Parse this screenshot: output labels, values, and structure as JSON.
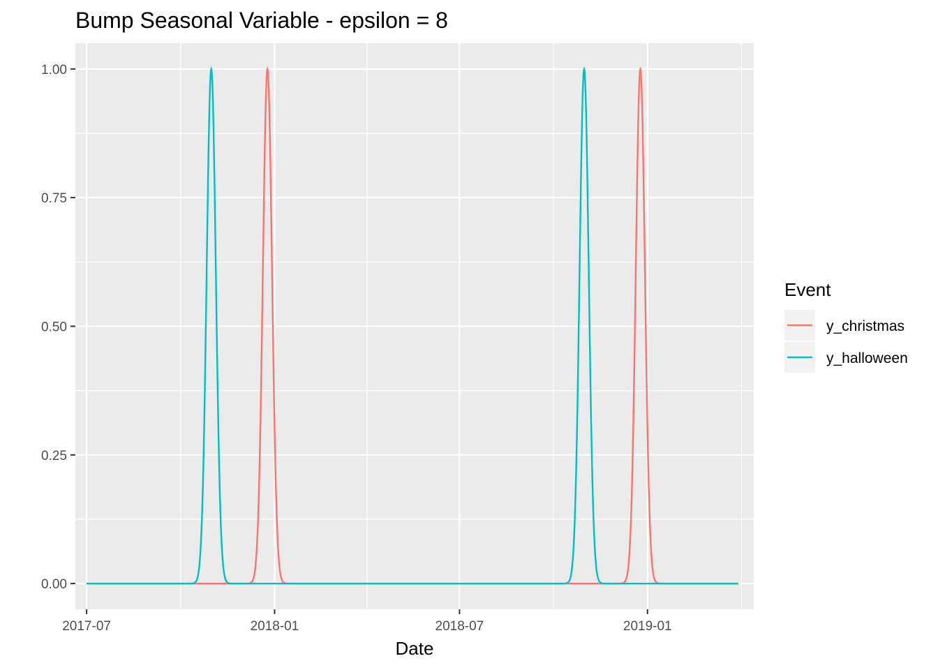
{
  "chart_data": {
    "type": "line",
    "title": "Bump Seasonal Variable - epsilon = 8",
    "xlabel": "Date",
    "ylabel": "",
    "x_axis_type": "date",
    "xlim": [
      "2017-06-20",
      "2019-04-15"
    ],
    "ylim": [
      -0.05,
      1.05
    ],
    "x_range": [
      "2017-07-01",
      "2019-03-31"
    ],
    "x_ticks": [
      "2017-07",
      "2018-01",
      "2018-07",
      "2019-01"
    ],
    "y_ticks": [
      "0.00",
      "0.25",
      "0.50",
      "0.75",
      "1.00"
    ],
    "grid": true,
    "legend": {
      "title": "Event",
      "position": "right"
    },
    "series": [
      {
        "name": "y_christmas",
        "color": "#F8766D",
        "peaks": [
          "2017-12-25",
          "2018-12-25"
        ],
        "peak_value": 1.0,
        "baseline": 0.0
      },
      {
        "name": "y_halloween",
        "color": "#00BFC4",
        "peaks": [
          "2017-10-31",
          "2018-10-31"
        ],
        "peak_value": 1.0,
        "baseline": 0.0
      }
    ],
    "epsilon": 8
  }
}
